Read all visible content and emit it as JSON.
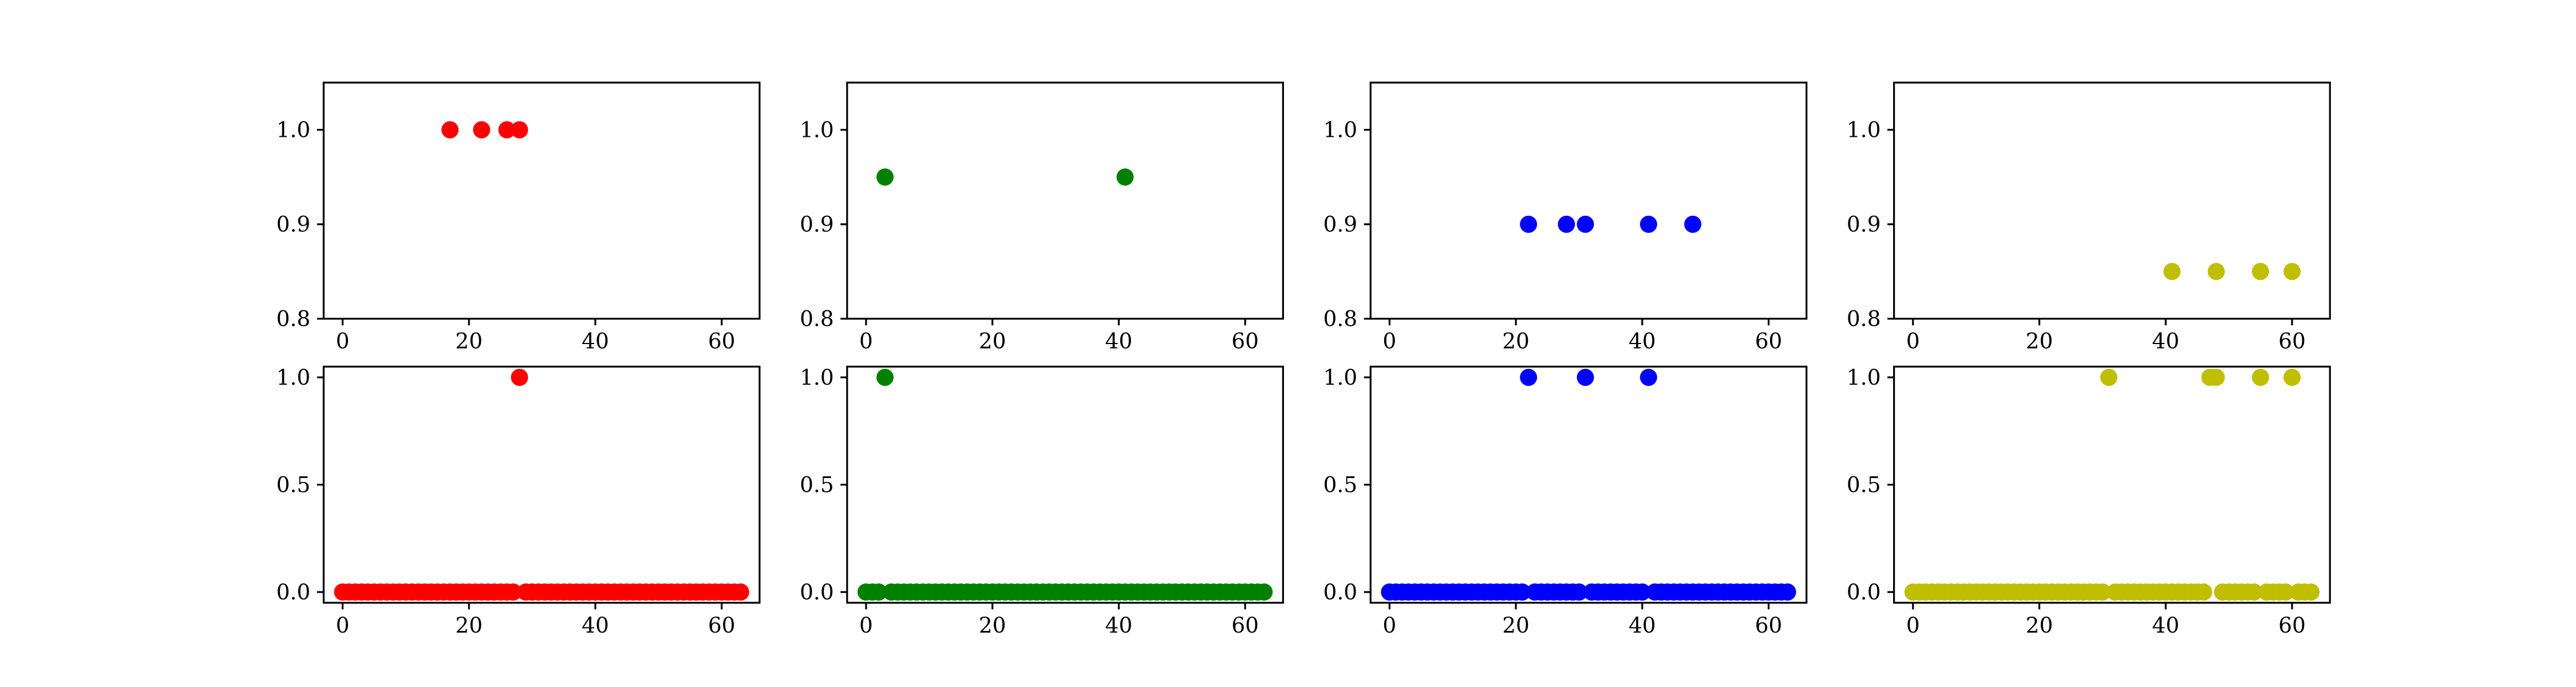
{
  "chart_data": [
    {
      "type": "scatter",
      "color": "#ff0000",
      "ylim": [
        0.8,
        1.05
      ],
      "xlim": [
        -3,
        66
      ],
      "xticks": [
        "0",
        "20",
        "40",
        "60"
      ],
      "yticks": [
        "0.8",
        "0.9",
        "1.0"
      ],
      "x": [
        17,
        22,
        26,
        28
      ],
      "y": [
        1.0,
        1.0,
        1.0,
        1.0
      ]
    },
    {
      "type": "scatter",
      "color": "#008000",
      "ylim": [
        0.8,
        1.05
      ],
      "xlim": [
        -3,
        66
      ],
      "xticks": [
        "0",
        "20",
        "40",
        "60"
      ],
      "yticks": [
        "0.8",
        "0.9",
        "1.0"
      ],
      "x": [
        3,
        41
      ],
      "y": [
        0.95,
        0.95
      ]
    },
    {
      "type": "scatter",
      "color": "#0000ff",
      "ylim": [
        0.8,
        1.05
      ],
      "xlim": [
        -3,
        66
      ],
      "xticks": [
        "0",
        "20",
        "40",
        "60"
      ],
      "yticks": [
        "0.8",
        "0.9",
        "1.0"
      ],
      "x": [
        22,
        28,
        31,
        41,
        48
      ],
      "y": [
        0.9,
        0.9,
        0.9,
        0.9,
        0.9
      ]
    },
    {
      "type": "scatter",
      "color": "#bfbf00",
      "ylim": [
        0.8,
        1.05
      ],
      "xlim": [
        -3,
        66
      ],
      "xticks": [
        "0",
        "20",
        "40",
        "60"
      ],
      "yticks": [
        "0.8",
        "0.9",
        "1.0"
      ],
      "x": [
        41,
        48,
        55,
        60
      ],
      "y": [
        0.85,
        0.85,
        0.85,
        0.85
      ]
    },
    {
      "type": "scatter",
      "color": "#ff0000",
      "ylim": [
        -0.05,
        1.05
      ],
      "xlim": [
        -3,
        66
      ],
      "xticks": [
        "0",
        "20",
        "40",
        "60"
      ],
      "yticks": [
        "0.0",
        "0.5",
        "1.0"
      ],
      "x": [
        0,
        1,
        2,
        3,
        4,
        5,
        6,
        7,
        8,
        9,
        10,
        11,
        12,
        13,
        14,
        15,
        16,
        17,
        18,
        19,
        20,
        21,
        22,
        23,
        24,
        25,
        26,
        27,
        28,
        29,
        30,
        31,
        32,
        33,
        34,
        35,
        36,
        37,
        38,
        39,
        40,
        41,
        42,
        43,
        44,
        45,
        46,
        47,
        48,
        49,
        50,
        51,
        52,
        53,
        54,
        55,
        56,
        57,
        58,
        59,
        60,
        61,
        62,
        63
      ],
      "y": [
        0,
        0,
        0,
        0,
        0,
        0,
        0,
        0,
        0,
        0,
        0,
        0,
        0,
        0,
        0,
        0,
        0,
        0,
        0,
        0,
        0,
        0,
        0,
        0,
        0,
        0,
        0,
        0,
        1,
        0,
        0,
        0,
        0,
        0,
        0,
        0,
        0,
        0,
        0,
        0,
        0,
        0,
        0,
        0,
        0,
        0,
        0,
        0,
        0,
        0,
        0,
        0,
        0,
        0,
        0,
        0,
        0,
        0,
        0,
        0,
        0,
        0,
        0,
        0
      ]
    },
    {
      "type": "scatter",
      "color": "#008000",
      "ylim": [
        -0.05,
        1.05
      ],
      "xlim": [
        -3,
        66
      ],
      "xticks": [
        "0",
        "20",
        "40",
        "60"
      ],
      "yticks": [
        "0.0",
        "0.5",
        "1.0"
      ],
      "x": [
        0,
        1,
        2,
        3,
        4,
        5,
        6,
        7,
        8,
        9,
        10,
        11,
        12,
        13,
        14,
        15,
        16,
        17,
        18,
        19,
        20,
        21,
        22,
        23,
        24,
        25,
        26,
        27,
        28,
        29,
        30,
        31,
        32,
        33,
        34,
        35,
        36,
        37,
        38,
        39,
        40,
        41,
        42,
        43,
        44,
        45,
        46,
        47,
        48,
        49,
        50,
        51,
        52,
        53,
        54,
        55,
        56,
        57,
        58,
        59,
        60,
        61,
        62,
        63
      ],
      "y": [
        0,
        0,
        0,
        1,
        0,
        0,
        0,
        0,
        0,
        0,
        0,
        0,
        0,
        0,
        0,
        0,
        0,
        0,
        0,
        0,
        0,
        0,
        0,
        0,
        0,
        0,
        0,
        0,
        0,
        0,
        0,
        0,
        0,
        0,
        0,
        0,
        0,
        0,
        0,
        0,
        0,
        0,
        0,
        0,
        0,
        0,
        0,
        0,
        0,
        0,
        0,
        0,
        0,
        0,
        0,
        0,
        0,
        0,
        0,
        0,
        0,
        0,
        0,
        0
      ]
    },
    {
      "type": "scatter",
      "color": "#0000ff",
      "ylim": [
        -0.05,
        1.05
      ],
      "xlim": [
        -3,
        66
      ],
      "xticks": [
        "0",
        "20",
        "40",
        "60"
      ],
      "yticks": [
        "0.0",
        "0.5",
        "1.0"
      ],
      "x": [
        0,
        1,
        2,
        3,
        4,
        5,
        6,
        7,
        8,
        9,
        10,
        11,
        12,
        13,
        14,
        15,
        16,
        17,
        18,
        19,
        20,
        21,
        22,
        23,
        24,
        25,
        26,
        27,
        28,
        29,
        30,
        31,
        32,
        33,
        34,
        35,
        36,
        37,
        38,
        39,
        40,
        41,
        42,
        43,
        44,
        45,
        46,
        47,
        48,
        49,
        50,
        51,
        52,
        53,
        54,
        55,
        56,
        57,
        58,
        59,
        60,
        61,
        62,
        63
      ],
      "y": [
        0,
        0,
        0,
        0,
        0,
        0,
        0,
        0,
        0,
        0,
        0,
        0,
        0,
        0,
        0,
        0,
        0,
        0,
        0,
        0,
        0,
        0,
        1,
        0,
        0,
        0,
        0,
        0,
        0,
        0,
        0,
        1,
        0,
        0,
        0,
        0,
        0,
        0,
        0,
        0,
        0,
        1,
        0,
        0,
        0,
        0,
        0,
        0,
        0,
        0,
        0,
        0,
        0,
        0,
        0,
        0,
        0,
        0,
        0,
        0,
        0,
        0,
        0,
        0
      ]
    },
    {
      "type": "scatter",
      "color": "#bfbf00",
      "ylim": [
        -0.05,
        1.05
      ],
      "xlim": [
        -3,
        66
      ],
      "xticks": [
        "0",
        "20",
        "40",
        "60"
      ],
      "yticks": [
        "0.0",
        "0.5",
        "1.0"
      ],
      "x": [
        0,
        1,
        2,
        3,
        4,
        5,
        6,
        7,
        8,
        9,
        10,
        11,
        12,
        13,
        14,
        15,
        16,
        17,
        18,
        19,
        20,
        21,
        22,
        23,
        24,
        25,
        26,
        27,
        28,
        29,
        30,
        31,
        32,
        33,
        34,
        35,
        36,
        37,
        38,
        39,
        40,
        41,
        42,
        43,
        44,
        45,
        46,
        47,
        48,
        49,
        50,
        51,
        52,
        53,
        54,
        55,
        56,
        57,
        58,
        59,
        60,
        61,
        62,
        63
      ],
      "y": [
        0,
        0,
        0,
        0,
        0,
        0,
        0,
        0,
        0,
        0,
        0,
        0,
        0,
        0,
        0,
        0,
        0,
        0,
        0,
        0,
        0,
        0,
        0,
        0,
        0,
        0,
        0,
        0,
        0,
        0,
        0,
        1,
        0,
        0,
        0,
        0,
        0,
        0,
        0,
        0,
        0,
        0,
        0,
        0,
        0,
        0,
        0,
        1,
        1,
        0,
        0,
        0,
        0,
        0,
        0,
        1,
        0,
        0,
        0,
        0,
        1,
        0,
        0,
        0
      ]
    }
  ]
}
